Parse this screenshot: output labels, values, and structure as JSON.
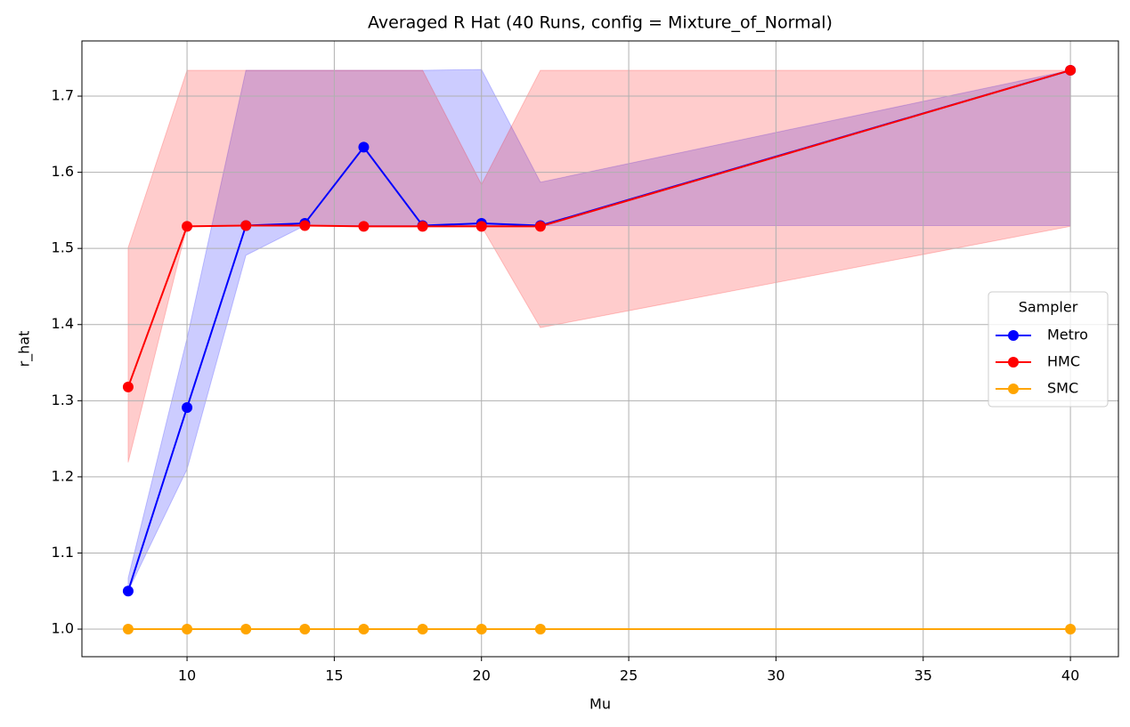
{
  "chart_data": {
    "type": "line",
    "title": "Averaged R Hat (40 Runs, config = Mixture_of_Normal)",
    "x_label": "Mu",
    "y_label": "r_hat",
    "x": [
      8,
      10,
      12,
      14,
      16,
      18,
      20,
      22,
      40
    ],
    "series": [
      {
        "name": "Metro",
        "color": "#0000ff",
        "values": [
          1.05,
          1.291,
          1.53,
          1.533,
          1.633,
          1.53,
          1.533,
          1.53,
          1.734
        ],
        "lower": [
          1.05,
          1.21,
          1.491,
          1.53,
          1.53,
          1.53,
          1.53,
          1.53,
          1.53
        ],
        "upper": [
          1.067,
          1.382,
          1.734,
          1.734,
          1.734,
          1.734,
          1.735,
          1.587,
          1.734
        ]
      },
      {
        "name": "HMC",
        "color": "#ff0000",
        "values": [
          1.318,
          1.529,
          1.53,
          1.53,
          1.529,
          1.529,
          1.529,
          1.529,
          1.734
        ],
        "lower": [
          1.219,
          1.529,
          1.53,
          1.53,
          1.529,
          1.529,
          1.529,
          1.396,
          1.529
        ],
        "upper": [
          1.501,
          1.734,
          1.734,
          1.734,
          1.734,
          1.734,
          1.584,
          1.734,
          1.734
        ]
      },
      {
        "name": "SMC",
        "color": "#ffa500",
        "values": [
          1.0,
          1.0,
          1.0,
          1.0,
          1.0,
          1.0,
          1.0,
          1.0,
          1.0
        ]
      }
    ],
    "xlim": [
      6.43,
      41.63
    ],
    "xticks": [
      10,
      15,
      20,
      25,
      30,
      35,
      40
    ],
    "ylim": [
      0.9638,
      1.7725
    ],
    "yticks": [
      {
        "value": 1,
        "label": "1.0"
      },
      1.1,
      1.2,
      1.3,
      1.4,
      1.5,
      1.6,
      1.7
    ],
    "grid": true,
    "legend_title": "Sampler",
    "legend_position": "right"
  }
}
